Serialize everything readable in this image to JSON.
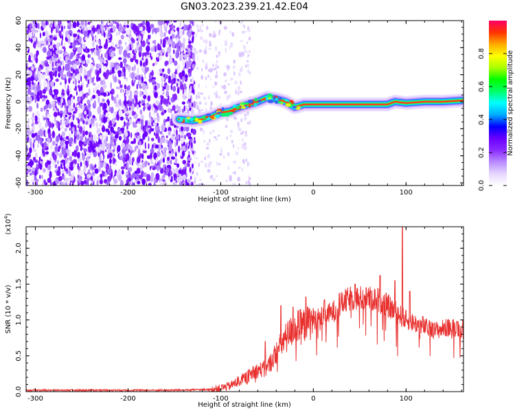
{
  "title": "GN03.2023.239.21.42.E04",
  "chart_data": [
    {
      "type": "heatmap",
      "title": "GN03.2023.239.21.42.E04",
      "xlabel": "Height of straight line (km)",
      "ylabel": "Frequency (Hz)",
      "xlim": [
        -310,
        162
      ],
      "ylim": [
        -62,
        60
      ],
      "xticks": [
        -300,
        -200,
        -100,
        0,
        100
      ],
      "yticks": [
        60,
        40,
        20,
        0,
        -20,
        -40,
        -60
      ],
      "colorbar": {
        "label": "Normalized spectral amplitude",
        "range": [
          0,
          1
        ],
        "ticks": [
          "0.0",
          "0.2",
          "0.4",
          "0.6",
          "0.8"
        ],
        "colors": [
          "#ffffff",
          "#e6d6ff",
          "#b98bff",
          "#8a2bff",
          "#6a00ff",
          "#0000ff",
          "#00aaff",
          "#00ffff",
          "#00ff66",
          "#00ff00",
          "#aaff00",
          "#ffff00",
          "#ffaa00",
          "#ff3300",
          "#ff0066"
        ]
      },
      "ridge": [
        [
          -145,
          -13
        ],
        [
          -130,
          -14
        ],
        [
          -120,
          -13
        ],
        [
          -110,
          -11
        ],
        [
          -100,
          -8
        ],
        [
          -90,
          -7
        ],
        [
          -80,
          -4
        ],
        [
          -70,
          -2
        ],
        [
          -60,
          0
        ],
        [
          -50,
          3
        ],
        [
          -40,
          2
        ],
        [
          -30,
          0
        ],
        [
          -20,
          -4
        ],
        [
          -10,
          -2
        ],
        [
          0,
          -2
        ],
        [
          20,
          -2
        ],
        [
          40,
          -2
        ],
        [
          60,
          -2
        ],
        [
          80,
          -2
        ],
        [
          88,
          0
        ],
        [
          100,
          -1
        ],
        [
          120,
          0
        ],
        [
          140,
          0
        ],
        [
          162,
          1
        ]
      ]
    },
    {
      "type": "line",
      "xlabel": "Height of straight line (km)",
      "ylabel": "SNR (10 * v/v)",
      "scale_note": "(x10",
      "scale_exp": "4",
      "scale_close": ")",
      "xlim": [
        -310,
        162
      ],
      "ylim": [
        0,
        2.3
      ],
      "xticks": [
        -300,
        -200,
        -100,
        0,
        100
      ],
      "yticks": [
        "0.0",
        "0.5",
        "1.0",
        "1.5",
        "2.0"
      ],
      "series_color": "#e8312f",
      "envelope": [
        [
          -310,
          0.02
        ],
        [
          -150,
          0.02
        ],
        [
          -110,
          0.03
        ],
        [
          -100,
          0.05
        ],
        [
          -90,
          0.08
        ],
        [
          -80,
          0.15
        ],
        [
          -70,
          0.22
        ],
        [
          -60,
          0.3
        ],
        [
          -50,
          0.32
        ],
        [
          -40,
          0.55
        ],
        [
          -30,
          0.75
        ],
        [
          -20,
          0.9
        ],
        [
          -10,
          0.92
        ],
        [
          0,
          1.0
        ],
        [
          10,
          1.05
        ],
        [
          20,
          1.1
        ],
        [
          30,
          1.22
        ],
        [
          40,
          1.3
        ],
        [
          50,
          1.3
        ],
        [
          60,
          1.3
        ],
        [
          70,
          1.28
        ],
        [
          80,
          1.2
        ],
        [
          90,
          1.1
        ],
        [
          100,
          1.0
        ],
        [
          110,
          0.95
        ],
        [
          120,
          0.9
        ],
        [
          130,
          0.85
        ],
        [
          140,
          0.88
        ],
        [
          150,
          0.9
        ],
        [
          162,
          0.88
        ]
      ],
      "spikes": [
        [
          -65,
          0.35
        ],
        [
          -52,
          0.7
        ],
        [
          -35,
          1.2
        ],
        [
          -22,
          1.18
        ],
        [
          -8,
          1.32
        ],
        [
          12,
          1.28
        ],
        [
          28,
          1.37
        ],
        [
          45,
          1.5
        ],
        [
          57,
          1.45
        ],
        [
          72,
          1.62
        ],
        [
          88,
          1.55
        ],
        [
          96,
          2.3
        ],
        [
          104,
          1.4
        ],
        [
          118,
          1.05
        ],
        [
          129,
          0.95
        ],
        [
          145,
          1.0
        ],
        [
          155,
          0.98
        ]
      ]
    }
  ]
}
